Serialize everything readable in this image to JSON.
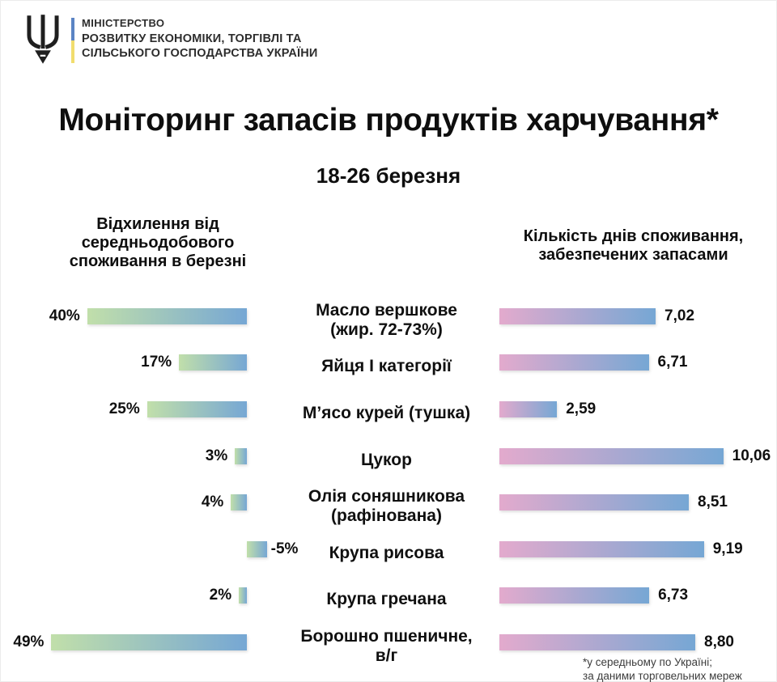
{
  "header": {
    "ministry_lines": [
      "МІНІСТЕРСТВО",
      "РОЗВИТКУ ЕКОНОМІКИ, ТОРГІВЛІ ТА",
      "СІЛЬСЬКОГО ГОСПОДАРСТВА УКРАЇНИ"
    ],
    "emblem": "ukraine-trident",
    "flag_colors": {
      "blue": "#5b84c4",
      "yellow": "#f1dd6e"
    }
  },
  "columns": {
    "left_header": "Відхилення від\nсередньодобового\nспоживання в березні",
    "right_header": "Кількість днів споживання,\nзабезпечених запасами"
  },
  "chart_data": {
    "type": "bar",
    "orientation": "horizontal",
    "title": "Моніторинг запасів продуктів харчування*",
    "subtitle": "18-26 березня",
    "grid": false,
    "legend": "none",
    "categories": [
      "Масло вершкове\n(жир. 72-73%)",
      "Яйця І категорії",
      "М’ясо курей (тушка)",
      "Цукор",
      "Олія соняшникова\n(рафінована)",
      "Крупа рисова",
      "Крупа гречана",
      "Борошно пшеничне,\nв/г"
    ],
    "series": [
      {
        "name": "Відхилення від середньодобового споживання в березні",
        "unit": "%",
        "values": [
          40,
          17,
          25,
          3,
          4,
          -5,
          2,
          49
        ],
        "value_labels": [
          "40%",
          "17%",
          "25%",
          "3%",
          "4%",
          "-5%",
          "2%",
          "49%"
        ],
        "axis_range": [
          -5,
          49
        ],
        "alignment": "bars-end-at-right-baseline",
        "gradient": [
          "#c1dfaa",
          "#76a7d4"
        ]
      },
      {
        "name": "Кількість днів споживання, забезпечених запасами",
        "unit": "днів",
        "values": [
          7.02,
          6.71,
          2.59,
          10.06,
          8.51,
          9.19,
          6.73,
          8.8
        ],
        "value_labels": [
          "7,02",
          "6,71",
          "2,59",
          "10,06",
          "8,51",
          "9,19",
          "6,73",
          "8,80"
        ],
        "axis_range": [
          0,
          10.06
        ],
        "alignment": "bars-start-at-left-baseline",
        "gradient": [
          "#e3aacd",
          "#76a7d4"
        ]
      }
    ]
  },
  "footnote": "*у середньому по Україні;\nза даними торговельних мереж"
}
